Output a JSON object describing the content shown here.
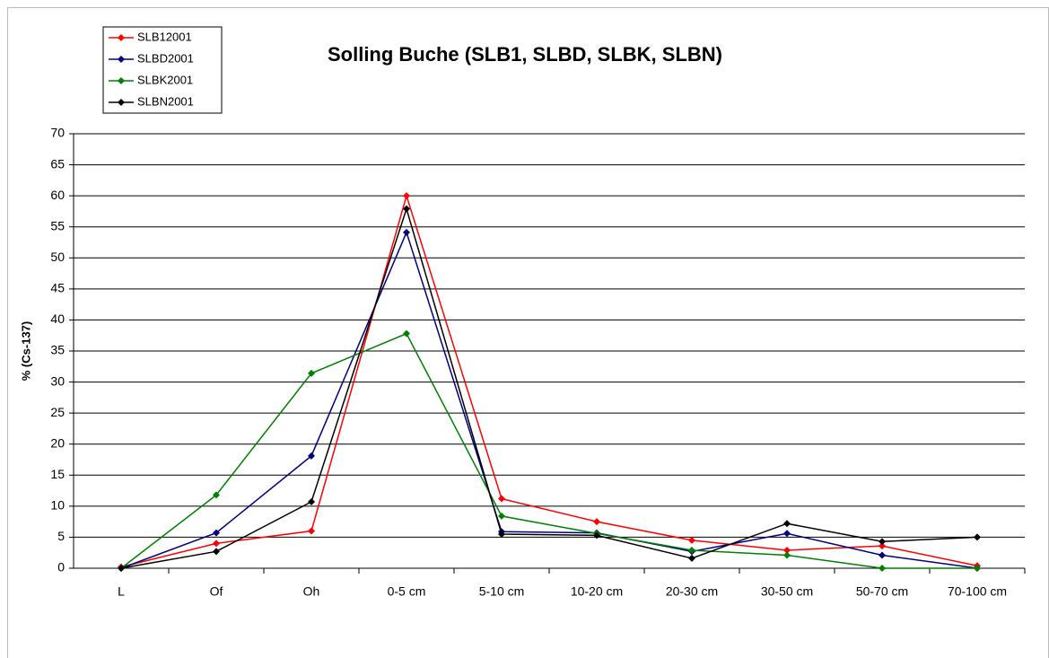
{
  "chart_data": {
    "type": "line",
    "title": "Solling Buche (SLB1, SLBD, SLBK, SLBN)",
    "y_label": "% (Cs-137)",
    "categories": [
      "L",
      "Of",
      "Oh",
      "0-5 cm",
      "5-10 cm",
      "10-20 cm",
      "20-30 cm",
      "30-50 cm",
      "50-70 cm",
      "70-100 cm"
    ],
    "series": [
      {
        "name": "SLB12001",
        "color": "#ff0000",
        "values": [
          0.2,
          4,
          6,
          60,
          11.2,
          7.5,
          4.5,
          2.9,
          3.6,
          0.4
        ]
      },
      {
        "name": "SLBD2001",
        "color": "#000080",
        "values": [
          0,
          5.7,
          18.1,
          54.1,
          5.9,
          5.7,
          2.7,
          5.6,
          2.1,
          0
        ]
      },
      {
        "name": "SLBK2001",
        "color": "#008000",
        "values": [
          0,
          11.8,
          31.4,
          37.8,
          8.4,
          5.6,
          2.9,
          2.1,
          0,
          0
        ]
      },
      {
        "name": "SLBN2001",
        "color": "#000000",
        "values": [
          0,
          2.7,
          10.7,
          57.9,
          5.5,
          5.3,
          1.6,
          7.2,
          4.3,
          5
        ]
      }
    ],
    "ylim": [
      0,
      70
    ],
    "yticks": [
      0,
      5,
      10,
      15,
      20,
      25,
      30,
      35,
      40,
      45,
      50,
      55,
      60,
      65,
      70
    ],
    "grid": true,
    "legend": "top-left"
  }
}
